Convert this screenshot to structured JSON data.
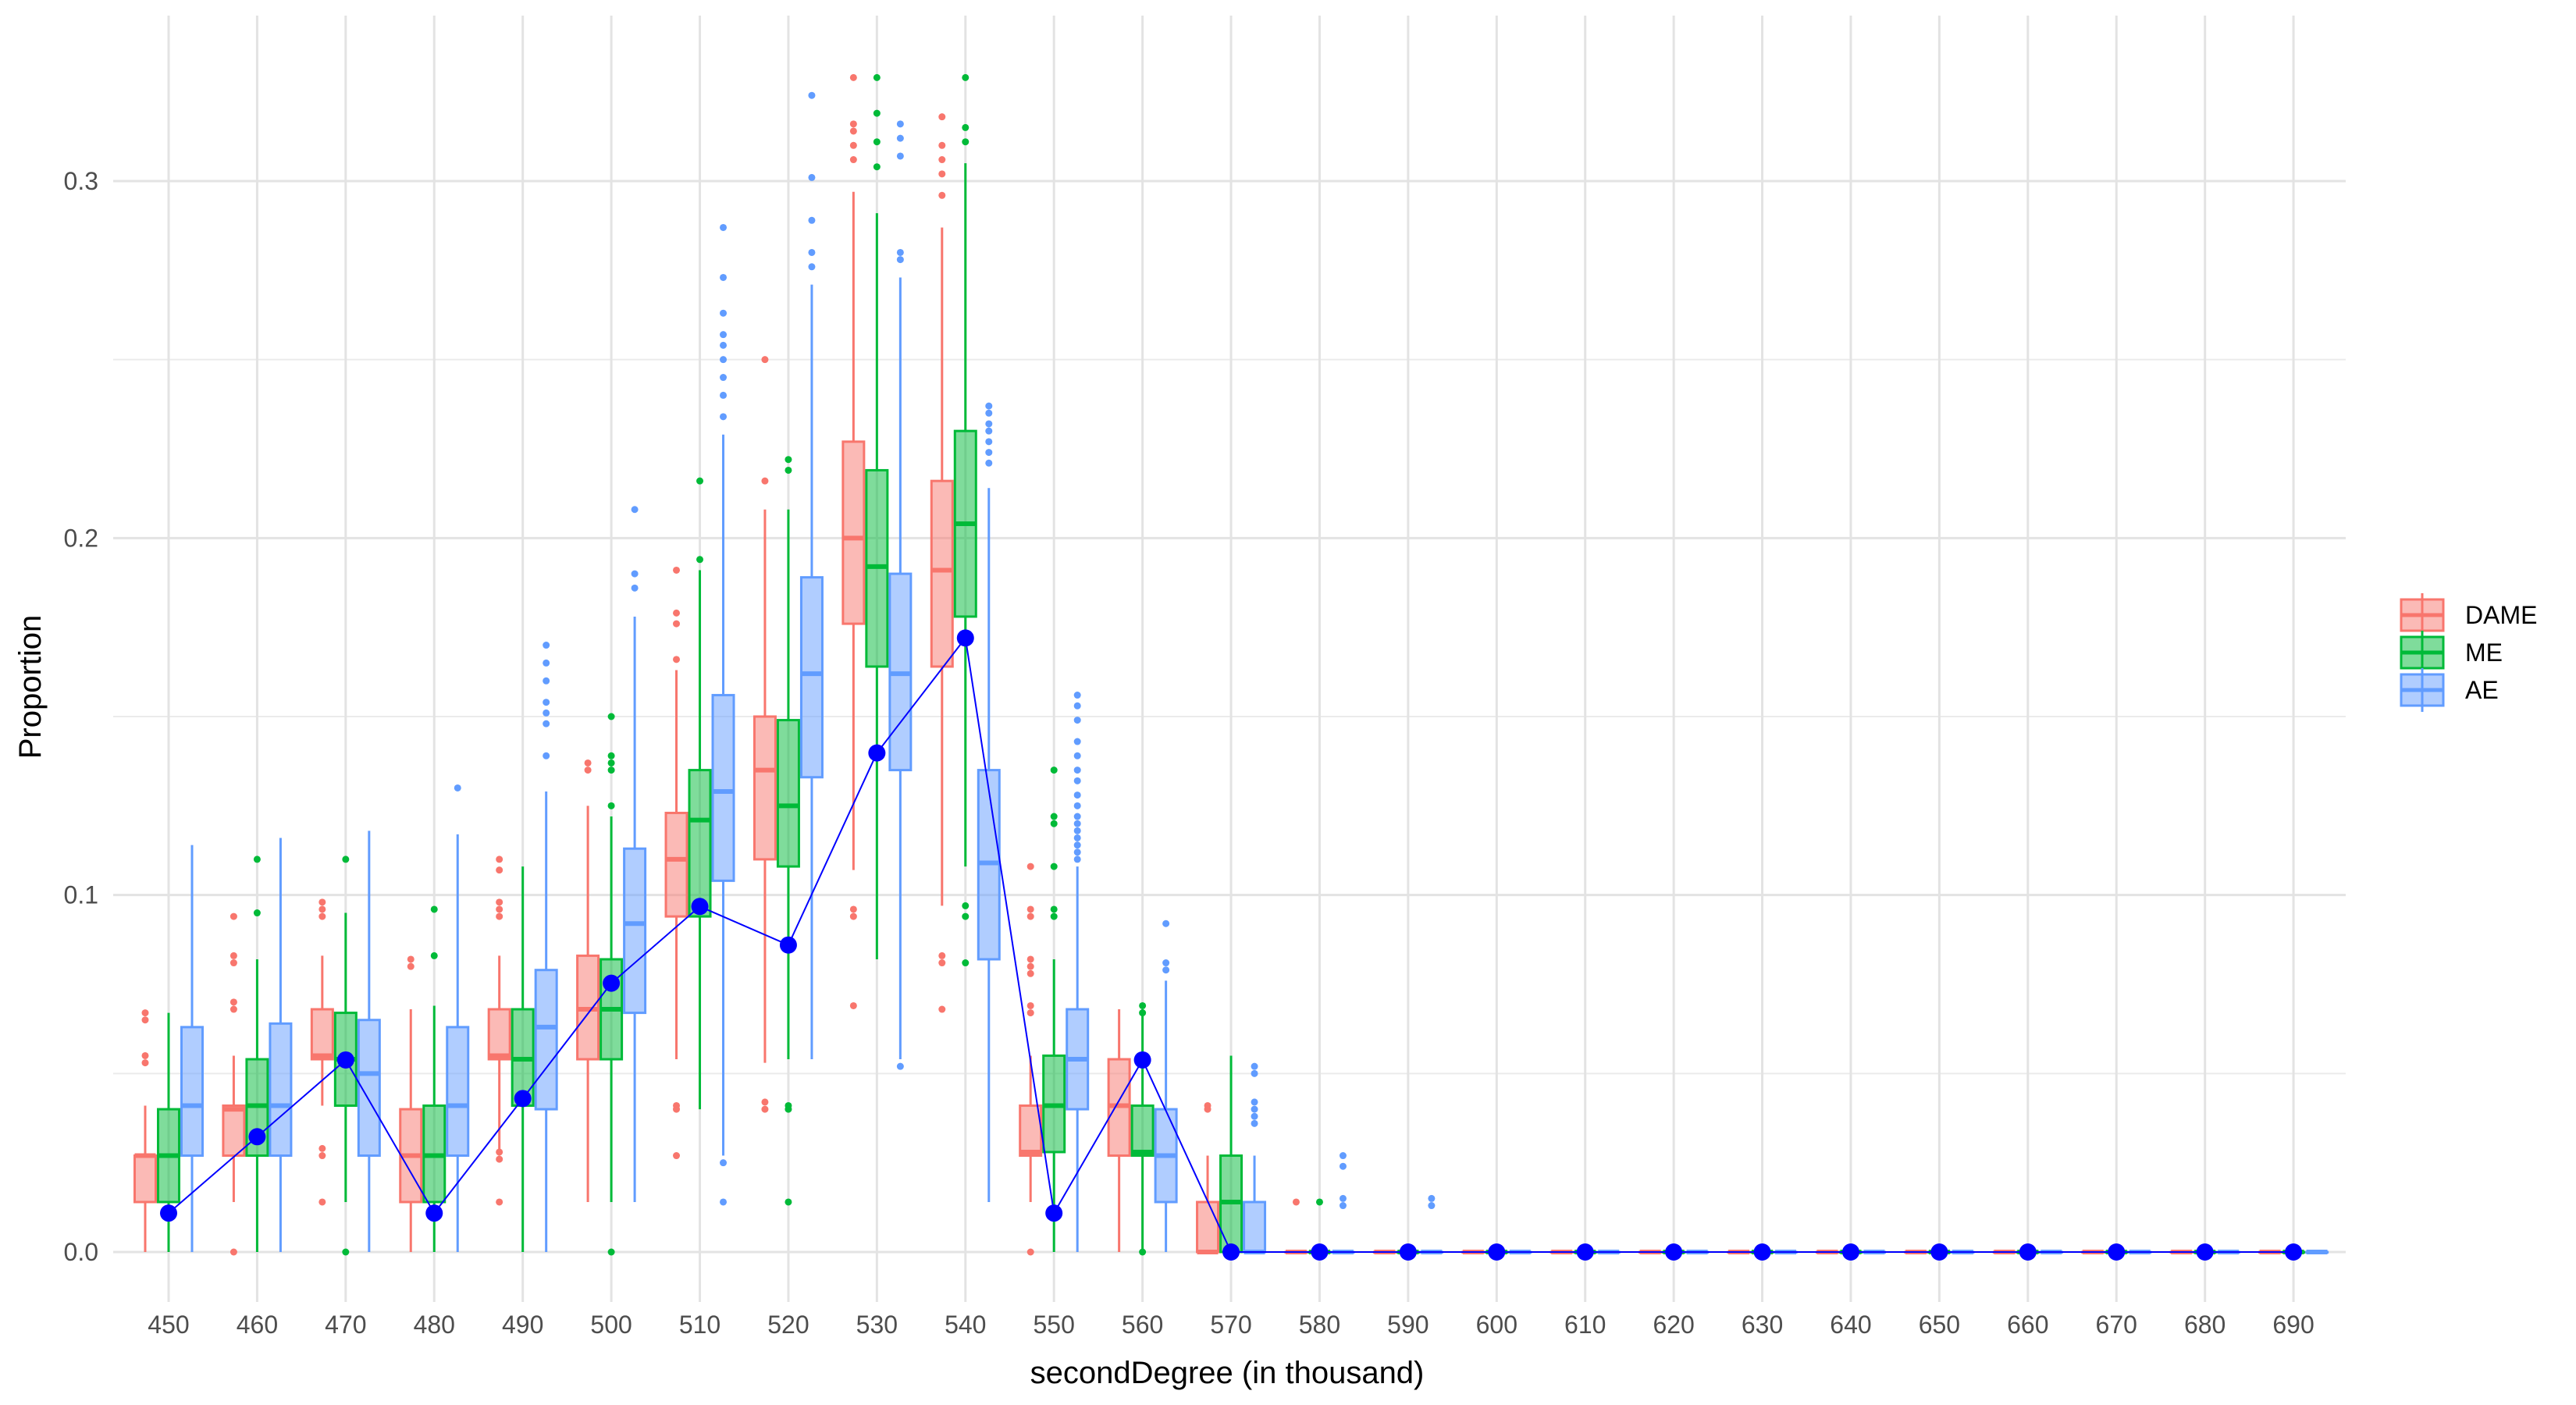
{
  "chart_data": {
    "type": "boxplot",
    "xlabel": "secondDegree (in thousand)",
    "ylabel": "Proportion",
    "ylim": [
      -0.015,
      0.34
    ],
    "y_ticks": [
      0.0,
      0.1,
      0.2,
      0.3
    ],
    "y_tick_labels": [
      "0.0",
      "0.1",
      "0.2",
      "0.3"
    ],
    "categories": [
      "450",
      "460",
      "470",
      "480",
      "490",
      "500",
      "510",
      "520",
      "530",
      "540",
      "550",
      "560",
      "570",
      "580",
      "590",
      "600",
      "610",
      "620",
      "630",
      "640",
      "650",
      "660",
      "670",
      "680",
      "690"
    ],
    "series": [
      {
        "name": "DAME",
        "color": "#F8766D",
        "boxes": [
          {
            "min": 0,
            "q1": 0.014,
            "median": 0.027,
            "q3": 0.027,
            "max": 0.041,
            "outliers": [
              0.053,
              0.055,
              0.065,
              0.067
            ]
          },
          {
            "min": 0.014,
            "q1": 0.027,
            "median": 0.04,
            "q3": 0.041,
            "max": 0.055,
            "outliers": [
              0.0,
              0.068,
              0.07,
              0.081,
              0.083,
              0.094
            ]
          },
          {
            "min": 0.041,
            "q1": 0.054,
            "median": 0.055,
            "q3": 0.068,
            "max": 0.083,
            "outliers": [
              0.014,
              0.027,
              0.029,
              0.094,
              0.096,
              0.098
            ]
          },
          {
            "min": 0,
            "q1": 0.014,
            "median": 0.027,
            "q3": 0.04,
            "max": 0.068,
            "outliers": [
              0.08,
              0.082
            ]
          },
          {
            "min": 0.027,
            "q1": 0.054,
            "median": 0.055,
            "q3": 0.068,
            "max": 0.083,
            "outliers": [
              0.014,
              0.026,
              0.028,
              0.094,
              0.096,
              0.098,
              0.107,
              0.11
            ]
          },
          {
            "min": 0.014,
            "q1": 0.054,
            "median": 0.068,
            "q3": 0.083,
            "max": 0.125,
            "outliers": [
              0.135,
              0.137
            ]
          },
          {
            "min": 0.054,
            "q1": 0.094,
            "median": 0.11,
            "q3": 0.123,
            "max": 0.163,
            "outliers": [
              0.027,
              0.04,
              0.041,
              0.166,
              0.176,
              0.179,
              0.191
            ]
          },
          {
            "min": 0.053,
            "q1": 0.11,
            "median": 0.135,
            "q3": 0.15,
            "max": 0.208,
            "outliers": [
              0.04,
              0.042,
              0.216,
              0.25
            ]
          },
          {
            "min": 0.107,
            "q1": 0.176,
            "median": 0.2,
            "q3": 0.227,
            "max": 0.297,
            "outliers": [
              0.069,
              0.094,
              0.096,
              0.306,
              0.31,
              0.314,
              0.316,
              0.329
            ]
          },
          {
            "min": 0.097,
            "q1": 0.164,
            "median": 0.191,
            "q3": 0.216,
            "max": 0.287,
            "outliers": [
              0.068,
              0.081,
              0.083,
              0.296,
              0.302,
              0.306,
              0.31,
              0.318
            ]
          },
          {
            "min": 0.014,
            "q1": 0.027,
            "median": 0.028,
            "q3": 0.041,
            "max": 0.055,
            "outliers": [
              0.0,
              0.067,
              0.069,
              0.078,
              0.08,
              0.082,
              0.094,
              0.096,
              0.108
            ]
          },
          {
            "min": 0,
            "q1": 0.027,
            "median": 0.041,
            "q3": 0.054,
            "max": 0.068,
            "outliers": []
          },
          {
            "min": 0,
            "q1": 0,
            "median": 0.0,
            "q3": 0.014,
            "max": 0.027,
            "outliers": [
              0.04,
              0.041
            ]
          },
          {
            "min": 0,
            "q1": 0,
            "median": 0,
            "q3": 0,
            "max": 0,
            "outliers": [
              0.014
            ]
          },
          {
            "min": 0,
            "q1": 0,
            "median": 0,
            "q3": 0,
            "max": 0,
            "outliers": []
          },
          {
            "min": 0,
            "q1": 0,
            "median": 0,
            "q3": 0,
            "max": 0,
            "outliers": []
          },
          {
            "min": 0,
            "q1": 0,
            "median": 0,
            "q3": 0,
            "max": 0,
            "outliers": []
          },
          {
            "min": 0,
            "q1": 0,
            "median": 0,
            "q3": 0,
            "max": 0,
            "outliers": []
          },
          {
            "min": 0,
            "q1": 0,
            "median": 0,
            "q3": 0,
            "max": 0,
            "outliers": []
          },
          {
            "min": 0,
            "q1": 0,
            "median": 0,
            "q3": 0,
            "max": 0,
            "outliers": []
          },
          {
            "min": 0,
            "q1": 0,
            "median": 0,
            "q3": 0,
            "max": 0,
            "outliers": []
          },
          {
            "min": 0,
            "q1": 0,
            "median": 0,
            "q3": 0,
            "max": 0,
            "outliers": []
          },
          {
            "min": 0,
            "q1": 0,
            "median": 0,
            "q3": 0,
            "max": 0,
            "outliers": []
          },
          {
            "min": 0,
            "q1": 0,
            "median": 0,
            "q3": 0,
            "max": 0,
            "outliers": []
          },
          {
            "min": 0,
            "q1": 0,
            "median": 0,
            "q3": 0,
            "max": 0,
            "outliers": []
          }
        ]
      },
      {
        "name": "ME",
        "color": "#00BA38",
        "boxes": [
          {
            "min": 0,
            "q1": 0.014,
            "median": 0.027,
            "q3": 0.04,
            "max": 0.067,
            "outliers": []
          },
          {
            "min": 0,
            "q1": 0.027,
            "median": 0.041,
            "q3": 0.054,
            "max": 0.082,
            "outliers": [
              0.095,
              0.11
            ]
          },
          {
            "min": 0.014,
            "q1": 0.041,
            "median": 0.054,
            "q3": 0.067,
            "max": 0.095,
            "outliers": [
              0.0,
              0.11
            ]
          },
          {
            "min": 0,
            "q1": 0.014,
            "median": 0.027,
            "q3": 0.041,
            "max": 0.069,
            "outliers": [
              0.083,
              0.096
            ]
          },
          {
            "min": 0,
            "q1": 0.041,
            "median": 0.054,
            "q3": 0.068,
            "max": 0.108,
            "outliers": []
          },
          {
            "min": 0.014,
            "q1": 0.054,
            "median": 0.068,
            "q3": 0.082,
            "max": 0.122,
            "outliers": [
              0.0,
              0.125,
              0.135,
              0.137,
              0.139,
              0.15
            ]
          },
          {
            "min": 0.04,
            "q1": 0.094,
            "median": 0.121,
            "q3": 0.135,
            "max": 0.191,
            "outliers": [
              0.194,
              0.216
            ]
          },
          {
            "min": 0.054,
            "q1": 0.108,
            "median": 0.125,
            "q3": 0.149,
            "max": 0.208,
            "outliers": [
              0.014,
              0.04,
              0.041,
              0.219,
              0.222
            ]
          },
          {
            "min": 0.082,
            "q1": 0.164,
            "median": 0.192,
            "q3": 0.219,
            "max": 0.291,
            "outliers": [
              0.304,
              0.311,
              0.319,
              0.329
            ]
          },
          {
            "min": 0.108,
            "q1": 0.178,
            "median": 0.204,
            "q3": 0.23,
            "max": 0.305,
            "outliers": [
              0.081,
              0.094,
              0.097,
              0.311,
              0.315,
              0.329
            ]
          },
          {
            "min": 0,
            "q1": 0.028,
            "median": 0.041,
            "q3": 0.055,
            "max": 0.082,
            "outliers": [
              0.094,
              0.096,
              0.108,
              0.12,
              0.122,
              0.135
            ]
          },
          {
            "min": 0,
            "q1": 0.027,
            "median": 0.028,
            "q3": 0.041,
            "max": 0.068,
            "outliers": [
              0.0,
              0.067,
              0.069
            ]
          },
          {
            "min": 0,
            "q1": 0,
            "median": 0.014,
            "q3": 0.027,
            "max": 0.055,
            "outliers": []
          },
          {
            "min": 0,
            "q1": 0,
            "median": 0,
            "q3": 0,
            "max": 0,
            "outliers": [
              0.014
            ]
          },
          {
            "min": 0,
            "q1": 0,
            "median": 0,
            "q3": 0,
            "max": 0,
            "outliers": []
          },
          {
            "min": 0,
            "q1": 0,
            "median": 0,
            "q3": 0,
            "max": 0,
            "outliers": []
          },
          {
            "min": 0,
            "q1": 0,
            "median": 0,
            "q3": 0,
            "max": 0,
            "outliers": []
          },
          {
            "min": 0,
            "q1": 0,
            "median": 0,
            "q3": 0,
            "max": 0,
            "outliers": []
          },
          {
            "min": 0,
            "q1": 0,
            "median": 0,
            "q3": 0,
            "max": 0,
            "outliers": []
          },
          {
            "min": 0,
            "q1": 0,
            "median": 0,
            "q3": 0,
            "max": 0,
            "outliers": []
          },
          {
            "min": 0,
            "q1": 0,
            "median": 0,
            "q3": 0,
            "max": 0,
            "outliers": []
          },
          {
            "min": 0,
            "q1": 0,
            "median": 0,
            "q3": 0,
            "max": 0,
            "outliers": []
          },
          {
            "min": 0,
            "q1": 0,
            "median": 0,
            "q3": 0,
            "max": 0,
            "outliers": []
          },
          {
            "min": 0,
            "q1": 0,
            "median": 0,
            "q3": 0,
            "max": 0,
            "outliers": []
          },
          {
            "min": 0,
            "q1": 0,
            "median": 0,
            "q3": 0,
            "max": 0,
            "outliers": []
          }
        ]
      },
      {
        "name": "AE",
        "color": "#619CFF",
        "boxes": [
          {
            "min": 0,
            "q1": 0.027,
            "median": 0.041,
            "q3": 0.063,
            "max": 0.114,
            "outliers": []
          },
          {
            "min": 0,
            "q1": 0.027,
            "median": 0.041,
            "q3": 0.064,
            "max": 0.116,
            "outliers": []
          },
          {
            "min": 0,
            "q1": 0.027,
            "median": 0.05,
            "q3": 0.065,
            "max": 0.118,
            "outliers": []
          },
          {
            "min": 0,
            "q1": 0.027,
            "median": 0.041,
            "q3": 0.063,
            "max": 0.117,
            "outliers": [
              0.13
            ]
          },
          {
            "min": 0,
            "q1": 0.04,
            "median": 0.063,
            "q3": 0.079,
            "max": 0.129,
            "outliers": [
              0.139,
              0.148,
              0.151,
              0.154,
              0.16,
              0.165,
              0.17
            ]
          },
          {
            "min": 0.014,
            "q1": 0.067,
            "median": 0.092,
            "q3": 0.113,
            "max": 0.178,
            "outliers": [
              0.186,
              0.19,
              0.208
            ]
          },
          {
            "min": 0.027,
            "q1": 0.104,
            "median": 0.129,
            "q3": 0.156,
            "max": 0.229,
            "outliers": [
              0.014,
              0.025,
              0.234,
              0.24,
              0.245,
              0.25,
              0.254,
              0.257,
              0.263,
              0.273,
              0.287
            ]
          },
          {
            "min": 0.054,
            "q1": 0.133,
            "median": 0.162,
            "q3": 0.189,
            "max": 0.271,
            "outliers": [
              0.276,
              0.28,
              0.289,
              0.301,
              0.324
            ]
          },
          {
            "min": 0.054,
            "q1": 0.135,
            "median": 0.162,
            "q3": 0.19,
            "max": 0.273,
            "outliers": [
              0.052,
              0.278,
              0.28,
              0.307,
              0.312,
              0.316
            ]
          },
          {
            "min": 0.014,
            "q1": 0.082,
            "median": 0.109,
            "q3": 0.135,
            "max": 0.214,
            "outliers": [
              0.221,
              0.224,
              0.227,
              0.23,
              0.232,
              0.235,
              0.237
            ]
          },
          {
            "min": 0,
            "q1": 0.04,
            "median": 0.054,
            "q3": 0.068,
            "max": 0.108,
            "outliers": [
              0.11,
              0.112,
              0.114,
              0.116,
              0.118,
              0.12,
              0.122,
              0.125,
              0.128,
              0.132,
              0.135,
              0.139,
              0.143,
              0.149,
              0.153,
              0.156
            ]
          },
          {
            "min": 0,
            "q1": 0.014,
            "median": 0.027,
            "q3": 0.04,
            "max": 0.076,
            "outliers": [
              0.079,
              0.081,
              0.092
            ]
          },
          {
            "min": 0,
            "q1": 0,
            "median": 0.0,
            "q3": 0.014,
            "max": 0.027,
            "outliers": [
              0.036,
              0.038,
              0.04,
              0.042,
              0.05,
              0.052
            ]
          },
          {
            "min": 0,
            "q1": 0,
            "median": 0,
            "q3": 0,
            "max": 0,
            "outliers": [
              0.013,
              0.015,
              0.024,
              0.027
            ]
          },
          {
            "min": 0,
            "q1": 0,
            "median": 0,
            "q3": 0,
            "max": 0,
            "outliers": [
              0.013,
              0.015
            ]
          },
          {
            "min": 0,
            "q1": 0,
            "median": 0,
            "q3": 0,
            "max": 0,
            "outliers": []
          },
          {
            "min": 0,
            "q1": 0,
            "median": 0,
            "q3": 0,
            "max": 0,
            "outliers": []
          },
          {
            "min": 0,
            "q1": 0,
            "median": 0,
            "q3": 0,
            "max": 0,
            "outliers": []
          },
          {
            "min": 0,
            "q1": 0,
            "median": 0,
            "q3": 0,
            "max": 0,
            "outliers": []
          },
          {
            "min": 0,
            "q1": 0,
            "median": 0,
            "q3": 0,
            "max": 0,
            "outliers": []
          },
          {
            "min": 0,
            "q1": 0,
            "median": 0,
            "q3": 0,
            "max": 0,
            "outliers": []
          },
          {
            "min": 0,
            "q1": 0,
            "median": 0,
            "q3": 0,
            "max": 0,
            "outliers": []
          },
          {
            "min": 0,
            "q1": 0,
            "median": 0,
            "q3": 0,
            "max": 0,
            "outliers": []
          },
          {
            "min": 0,
            "q1": 0,
            "median": 0,
            "q3": 0,
            "max": 0,
            "outliers": []
          },
          {
            "min": 0,
            "q1": 0,
            "median": 0,
            "q3": 0,
            "max": 0,
            "outliers": []
          }
        ]
      }
    ],
    "line": {
      "color": "#0000FF",
      "values": [
        0.0109,
        0.0323,
        0.0538,
        0.0109,
        0.043,
        0.0753,
        0.0968,
        0.086,
        0.1398,
        0.172,
        0.0109,
        0.0538,
        0.0,
        0.0,
        0.0,
        0.0,
        0.0,
        0.0,
        0.0,
        0.0,
        0.0,
        0.0,
        0.0,
        0.0,
        0.0
      ]
    },
    "legend": {
      "position": "right",
      "entries": [
        "DAME",
        "ME",
        "AE"
      ]
    }
  }
}
